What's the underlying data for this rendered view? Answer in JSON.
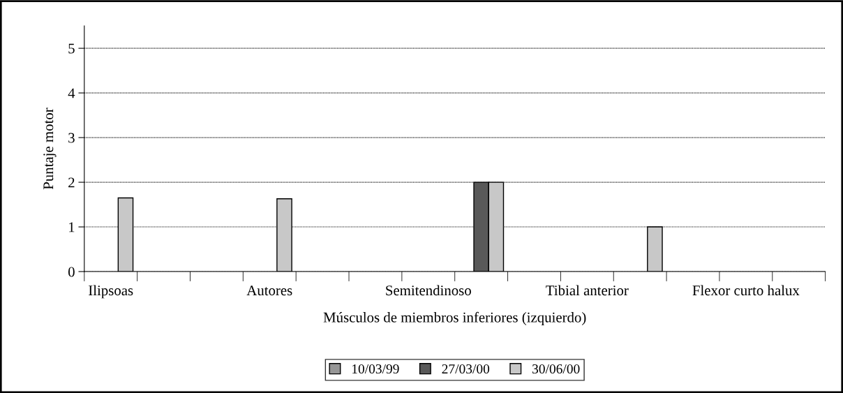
{
  "chart_data": {
    "type": "bar",
    "xlabel": "Músculos de miembros inferiores (izquierdo)",
    "ylabel": "Puntaje motor",
    "categories": [
      "Ilipsoas",
      null,
      null,
      "Autores",
      null,
      null,
      "Semitendinoso",
      null,
      null,
      "Tibial anterior",
      null,
      null,
      "Flexor curto halux",
      null
    ],
    "series": [
      {
        "name": "10/03/99",
        "color": "#969696",
        "values": [
          null,
          null,
          null,
          null,
          null,
          null,
          null,
          null,
          null,
          null,
          null,
          null,
          null,
          null
        ]
      },
      {
        "name": "27/03/00",
        "color": "#595959",
        "values": [
          null,
          null,
          null,
          null,
          null,
          null,
          null,
          2,
          null,
          null,
          null,
          null,
          null,
          null
        ]
      },
      {
        "name": "30/06/00",
        "color": "#c8c8c8",
        "values": [
          1.65,
          null,
          null,
          1.63,
          null,
          null,
          null,
          2,
          null,
          null,
          1.0,
          null,
          null,
          null
        ]
      }
    ],
    "ylim": [
      0,
      5.5
    ],
    "yticks": [
      0,
      1,
      2,
      3,
      4,
      5
    ],
    "grid": "y",
    "legend": "bottom"
  }
}
